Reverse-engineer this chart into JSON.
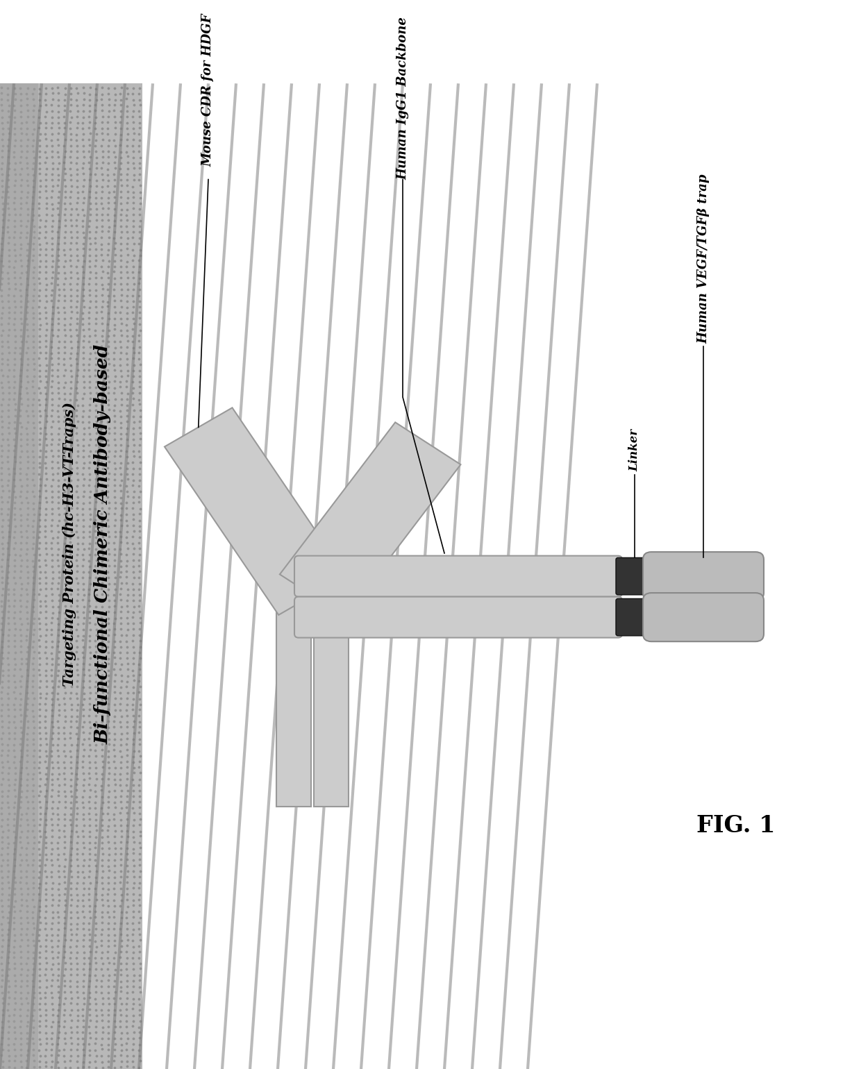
{
  "title_line1": "Bi-functional Chimeric Antibody-based",
  "title_line2": "Targeting Protein (hc-H3-VT-Traps)",
  "label_mouse_cdr": "Mouse CDR for HDGF",
  "label_human_igg1": "Human IgG1 Backbone",
  "label_linker": "Linker",
  "label_vegf_trap": "Human VEGF/TGFβ trap",
  "fig_label": "FIG. 1",
  "banner_bg": "#b8b8b8",
  "banner_stripe": "#888888",
  "arm_fill": "#cccccc",
  "arm_edge": "#999999",
  "bar_fill": "#cccccc",
  "bar_edge": "#999999",
  "linker_fill": "#333333",
  "linker_edge": "#111111",
  "trap_fill": "#bbbbbb",
  "trap_edge": "#888888"
}
